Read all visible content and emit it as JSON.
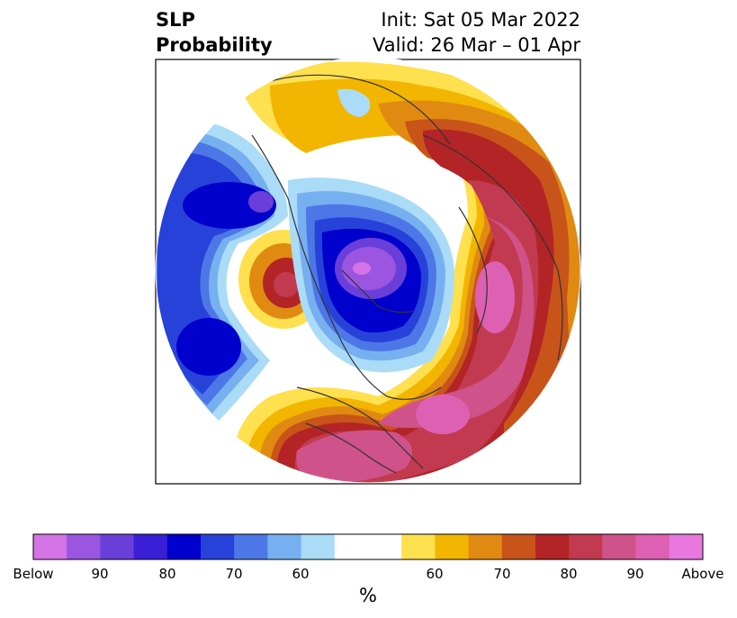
{
  "title": {
    "left_line1": "SLP",
    "left_line2": "Probability",
    "right_line1": "Init: Sat 05 Mar 2022",
    "right_line2": "Valid: 26 Mar – 01 Apr"
  },
  "colorbar": {
    "unit": "%",
    "ticks": {
      "below": "Below",
      "b90": "90",
      "b80": "80",
      "b70": "70",
      "b60": "60",
      "a60": "60",
      "a70": "70",
      "a80": "80",
      "a90": "90",
      "above": "Above"
    },
    "colors": [
      "#d473e6",
      "#9b55e0",
      "#6a3fd9",
      "#3a1fd6",
      "#0000cc",
      "#2742d9",
      "#4d77e6",
      "#77b0f0",
      "#aadcf8",
      "#ffffff",
      "#ffffff",
      "#ffe04f",
      "#f2b600",
      "#e08a12",
      "#c85419",
      "#b22426",
      "#c23a50",
      "#d0528a",
      "#de60b2",
      "#e877de"
    ]
  },
  "map": {
    "projection": "polar stereographic (north)",
    "palette": {
      "below_purple": "#a45be6",
      "below_darkblue": "#0000cc",
      "below_blue": "#2742d9",
      "below_mid": "#4d77e6",
      "below_light": "#77b0f0",
      "below_pale": "#aadcf8",
      "above_yellow": "#ffe04f",
      "above_gold": "#f2b600",
      "above_orange": "#e08a12",
      "above_burnt": "#c85419",
      "above_red": "#b22426",
      "above_crimson": "#c23a50",
      "above_pink": "#d0528a",
      "above_magenta": "#de60b2",
      "coastline": "#333333"
    }
  }
}
